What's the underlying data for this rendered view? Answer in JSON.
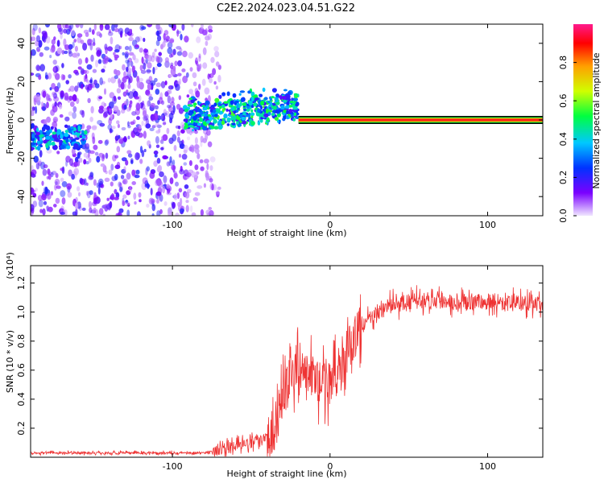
{
  "title": "C2E2.2024.023.04.51.G22",
  "colors": {
    "accent": "#ee3333",
    "spectrogram_noise": "#6a1bff",
    "signal_core": "#ff2a2a"
  },
  "chart_data": [
    {
      "type": "heatmap",
      "xlabel": "Height of straight line (km)",
      "ylabel": "Frequency (Hz)",
      "xlim": [
        -190,
        135
      ],
      "ylim": [
        -50,
        50
      ],
      "xticks": [
        -100,
        0,
        100
      ],
      "yticks": [
        -40,
        -20,
        0,
        20,
        40
      ],
      "grid": false,
      "colorbar": {
        "label": "Normalized spectral amplitude",
        "range": [
          0.0,
          1.0
        ],
        "ticks": [
          0.0,
          0.2,
          0.4,
          0.6,
          0.8
        ],
        "colormap": [
          "#f0e6ff",
          "#7a00ff",
          "#0033ff",
          "#00c8ff",
          "#00ff40",
          "#d0ff00",
          "#ffa000",
          "#ff0000",
          "#ff1a8c"
        ]
      },
      "regions": [
        {
          "x_range": [
            -190,
            -90
          ],
          "freq_range": [
            -50,
            50
          ],
          "level": 0.15
        },
        {
          "x_range": [
            -90,
            -70
          ],
          "freq_range": [
            -50,
            50
          ],
          "level": 0.08
        },
        {
          "x_range": [
            -190,
            -155
          ],
          "freq_range": [
            -15,
            -5
          ],
          "level": 0.35
        },
        {
          "x_range": [
            -92,
            -20
          ],
          "freq_center": [
            0,
            10
          ],
          "level": 0.45
        },
        {
          "x_range": [
            -20,
            135
          ],
          "freq_center": 0,
          "level": 0.9
        }
      ]
    },
    {
      "type": "line",
      "xlabel": "Height of straight line (km)",
      "ylabel": "SNR (10 * v/v)",
      "yscale_label": "(x10⁴)",
      "xlim": [
        -190,
        135
      ],
      "ylim": [
        0.0,
        1.32
      ],
      "xticks": [
        -100,
        0,
        100
      ],
      "yticks": [
        0.2,
        0.4,
        0.6,
        0.8,
        1.0,
        1.2
      ],
      "grid": false,
      "series": [
        {
          "color": "#ee3333",
          "x": [
            -190,
            -160,
            -130,
            -100,
            -80,
            -70,
            -60,
            -50,
            -40,
            -35,
            -30,
            -25,
            -20,
            -15,
            -10,
            -5,
            0,
            5,
            10,
            15,
            20,
            25,
            30,
            40,
            50,
            60,
            70,
            80,
            90,
            100,
            110,
            120,
            135
          ],
          "values": [
            0.03,
            0.03,
            0.03,
            0.03,
            0.03,
            0.05,
            0.08,
            0.1,
            0.15,
            0.2,
            0.4,
            0.55,
            0.65,
            0.58,
            0.55,
            0.5,
            0.52,
            0.55,
            0.7,
            0.82,
            0.9,
            0.95,
            1.0,
            1.05,
            1.07,
            1.08,
            1.08,
            1.07,
            1.07,
            1.07,
            1.06,
            1.06,
            1.05
          ]
        }
      ]
    }
  ]
}
